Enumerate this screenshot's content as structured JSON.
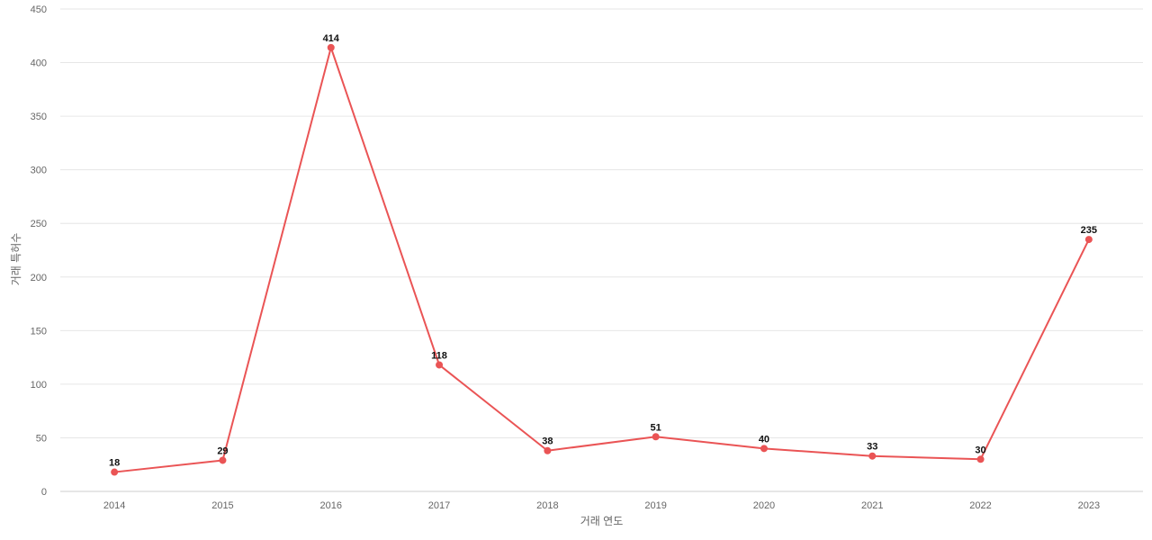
{
  "chart_data": {
    "type": "line",
    "title": "",
    "xlabel": "거래 연도",
    "ylabel": "거래 특허수",
    "x": [
      "2014",
      "2015",
      "2016",
      "2017",
      "2018",
      "2019",
      "2020",
      "2021",
      "2022",
      "2023"
    ],
    "series": [
      {
        "values": [
          18,
          29,
          414,
          118,
          38,
          51,
          40,
          33,
          30,
          235
        ],
        "color": "#ea5455"
      }
    ],
    "ylim": [
      0,
      450
    ],
    "yticks": [
      0,
      50,
      100,
      150,
      200,
      250,
      300,
      350,
      400,
      450
    ],
    "grid": true,
    "data_labels": true,
    "legend": "none"
  }
}
